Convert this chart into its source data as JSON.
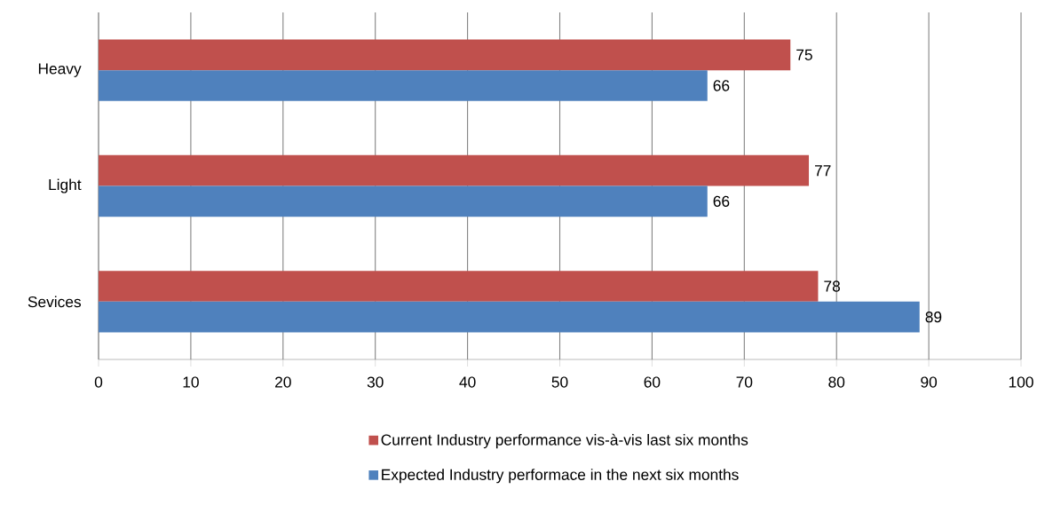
{
  "chart_data": {
    "type": "bar",
    "orientation": "horizontal",
    "categories": [
      "Heavy",
      "Light",
      "Sevices"
    ],
    "series": [
      {
        "name": "Current Industry performance vis-à-vis last six months",
        "color": "#c0504d",
        "values": [
          75,
          77,
          78
        ]
      },
      {
        "name": "Expected Industry performace in the next six months",
        "color": "#4f81bd",
        "values": [
          66,
          66,
          89
        ]
      }
    ],
    "xlim": [
      0,
      100
    ],
    "xticks": [
      0,
      10,
      20,
      30,
      40,
      50,
      60,
      70,
      80,
      90,
      100
    ],
    "grid": "x",
    "legend": "bottom",
    "data_labels": true
  }
}
